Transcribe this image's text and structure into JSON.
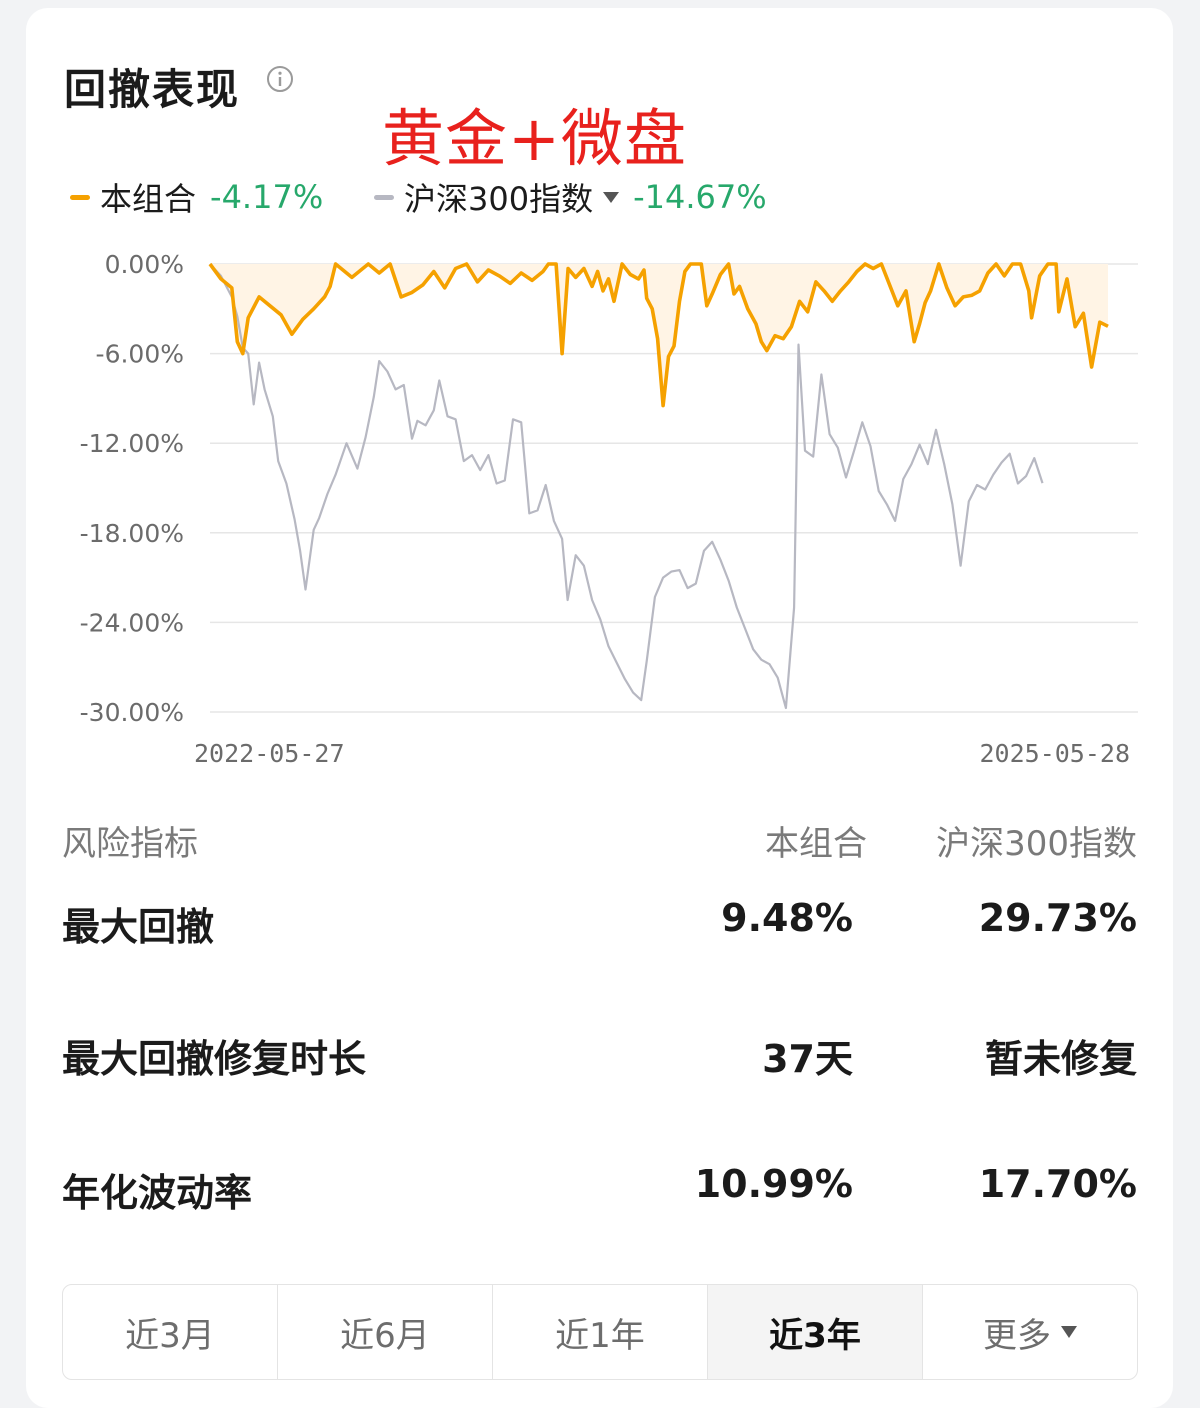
{
  "header": {
    "title": "回撤表现",
    "annotation": "黄金+微盘"
  },
  "legend": {
    "portfolio": {
      "name": "本组合",
      "value": "-4.17%",
      "color": "#f5a100"
    },
    "index": {
      "name": "沪深300指数",
      "value": "-14.67%",
      "color": "#b7b8c2"
    },
    "value_color": "#27a86b"
  },
  "chart_data": {
    "type": "line",
    "x_start": "2022-05-27",
    "x_end": "2025-05-28",
    "x_tick_labels": [
      "2022-05-27",
      "2025-05-28"
    ],
    "y_tick_labels": [
      "0.00%",
      "-6.00%",
      "-12.00%",
      "-18.00%",
      "-24.00%",
      "-30.00%"
    ],
    "ylim": [
      -30,
      0
    ],
    "grid": true,
    "series": [
      {
        "name": "本组合",
        "color": "#f5a100",
        "fill": "#fff4e5",
        "points": [
          [
            0,
            0
          ],
          [
            0.02,
            -1.0
          ],
          [
            0.04,
            -1.6
          ],
          [
            0.05,
            -5.2
          ],
          [
            0.06,
            -6.0
          ],
          [
            0.07,
            -3.6
          ],
          [
            0.09,
            -2.2
          ],
          [
            0.11,
            -2.8
          ],
          [
            0.13,
            -3.4
          ],
          [
            0.15,
            -4.7
          ],
          [
            0.17,
            -3.7
          ],
          [
            0.19,
            -3.0
          ],
          [
            0.21,
            -2.2
          ],
          [
            0.22,
            -1.5
          ],
          [
            0.23,
            0
          ],
          [
            0.26,
            -0.9
          ],
          [
            0.29,
            0
          ],
          [
            0.31,
            -0.6
          ],
          [
            0.33,
            0
          ],
          [
            0.35,
            -2.2
          ],
          [
            0.37,
            -1.9
          ],
          [
            0.39,
            -1.4
          ],
          [
            0.41,
            -0.5
          ],
          [
            0.43,
            -1.6
          ],
          [
            0.45,
            -0.3
          ],
          [
            0.47,
            0
          ],
          [
            0.49,
            -1.2
          ],
          [
            0.51,
            -0.4
          ],
          [
            0.53,
            -0.8
          ],
          [
            0.55,
            -1.3
          ],
          [
            0.57,
            -0.6
          ],
          [
            0.59,
            -1.1
          ],
          [
            0.61,
            -0.5
          ],
          [
            0.62,
            0
          ],
          [
            0.634,
            0
          ],
          [
            0.645,
            -6.0
          ],
          [
            0.656,
            -0.3
          ],
          [
            0.67,
            -0.9
          ],
          [
            0.685,
            -0.3
          ],
          [
            0.7,
            -1.5
          ],
          [
            0.71,
            -0.5
          ],
          [
            0.72,
            -1.8
          ],
          [
            0.73,
            -1.0
          ],
          [
            0.74,
            -2.5
          ],
          [
            0.755,
            0
          ],
          [
            0.77,
            -0.7
          ],
          [
            0.785,
            -1.0
          ],
          [
            0.795,
            -0.4
          ],
          [
            0.8,
            -2.3
          ],
          [
            0.81,
            -3.0
          ],
          [
            0.82,
            -5.0
          ],
          [
            0.83,
            -9.48
          ],
          [
            0.84,
            -6.2
          ],
          [
            0.85,
            -5.5
          ],
          [
            0.86,
            -2.5
          ],
          [
            0.87,
            -0.5
          ],
          [
            0.88,
            0
          ],
          [
            0.9,
            0
          ],
          [
            0.91,
            -2.8
          ],
          [
            0.92,
            -2.0
          ],
          [
            0.935,
            -0.7
          ],
          [
            0.95,
            0
          ],
          [
            0.96,
            -2.0
          ],
          [
            0.97,
            -1.5
          ],
          [
            0.985,
            -3.0
          ],
          [
            1.0,
            -4.0
          ],
          [
            1.01,
            -5.2
          ],
          [
            1.02,
            -5.8
          ],
          [
            1.035,
            -4.8
          ],
          [
            1.05,
            -5.0
          ],
          [
            1.065,
            -4.2
          ],
          [
            1.08,
            -2.5
          ],
          [
            1.095,
            -3.2
          ],
          [
            1.11,
            -1.2
          ],
          [
            1.125,
            -1.8
          ],
          [
            1.14,
            -2.5
          ],
          [
            1.155,
            -1.8
          ],
          [
            1.17,
            -1.2
          ],
          [
            1.185,
            -0.5
          ],
          [
            1.2,
            0
          ],
          [
            1.215,
            -0.3
          ],
          [
            1.23,
            0
          ],
          [
            1.245,
            -1.4
          ],
          [
            1.26,
            -2.8
          ],
          [
            1.275,
            -1.8
          ],
          [
            1.29,
            -5.2
          ],
          [
            1.3,
            -4.0
          ],
          [
            1.31,
            -2.6
          ],
          [
            1.32,
            -1.8
          ],
          [
            1.335,
            0
          ],
          [
            1.35,
            -1.6
          ],
          [
            1.365,
            -2.8
          ],
          [
            1.38,
            -2.2
          ],
          [
            1.395,
            -2.1
          ],
          [
            1.41,
            -1.8
          ],
          [
            1.425,
            -0.6
          ],
          [
            1.44,
            0
          ],
          [
            1.455,
            -0.8
          ],
          [
            1.47,
            0
          ],
          [
            1.485,
            0
          ],
          [
            1.5,
            -1.8
          ],
          [
            1.505,
            -3.6
          ],
          [
            1.52,
            -0.8
          ],
          [
            1.535,
            0
          ],
          [
            1.55,
            0
          ],
          [
            1.555,
            -3.2
          ],
          [
            1.57,
            -1.0
          ],
          [
            1.585,
            -4.2
          ],
          [
            1.6,
            -3.3
          ],
          [
            1.615,
            -6.9
          ],
          [
            1.63,
            -3.9
          ],
          [
            1.645,
            -4.17
          ]
        ]
      },
      {
        "name": "沪深300指数",
        "color": "#b7b8c2",
        "points": [
          [
            0,
            0
          ],
          [
            0.02,
            -0.8
          ],
          [
            0.04,
            -2.2
          ],
          [
            0.05,
            -3.5
          ],
          [
            0.06,
            -5.6
          ],
          [
            0.07,
            -6.0
          ],
          [
            0.08,
            -9.4
          ],
          [
            0.09,
            -6.6
          ],
          [
            0.1,
            -8.4
          ],
          [
            0.115,
            -10.2
          ],
          [
            0.125,
            -13.2
          ],
          [
            0.14,
            -14.7
          ],
          [
            0.155,
            -17.1
          ],
          [
            0.165,
            -19.2
          ],
          [
            0.175,
            -21.8
          ],
          [
            0.19,
            -17.8
          ],
          [
            0.2,
            -17.0
          ],
          [
            0.215,
            -15.4
          ],
          [
            0.23,
            -14.1
          ],
          [
            0.25,
            -12.0
          ],
          [
            0.27,
            -13.7
          ],
          [
            0.285,
            -11.6
          ],
          [
            0.3,
            -8.9
          ],
          [
            0.31,
            -6.5
          ],
          [
            0.325,
            -7.2
          ],
          [
            0.34,
            -8.4
          ],
          [
            0.355,
            -8.1
          ],
          [
            0.37,
            -11.7
          ],
          [
            0.38,
            -10.5
          ],
          [
            0.395,
            -10.8
          ],
          [
            0.41,
            -9.8
          ],
          [
            0.42,
            -7.8
          ],
          [
            0.435,
            -10.2
          ],
          [
            0.45,
            -10.4
          ],
          [
            0.465,
            -13.2
          ],
          [
            0.48,
            -12.8
          ],
          [
            0.495,
            -13.8
          ],
          [
            0.51,
            -12.8
          ],
          [
            0.525,
            -14.7
          ],
          [
            0.54,
            -14.5
          ],
          [
            0.555,
            -10.4
          ],
          [
            0.57,
            -10.6
          ],
          [
            0.585,
            -16.7
          ],
          [
            0.6,
            -16.5
          ],
          [
            0.615,
            -14.8
          ],
          [
            0.63,
            -17.2
          ],
          [
            0.645,
            -18.4
          ],
          [
            0.655,
            -22.5
          ],
          [
            0.67,
            -19.5
          ],
          [
            0.685,
            -20.2
          ],
          [
            0.7,
            -22.5
          ],
          [
            0.715,
            -23.8
          ],
          [
            0.73,
            -25.6
          ],
          [
            0.745,
            -26.7
          ],
          [
            0.76,
            -27.8
          ],
          [
            0.775,
            -28.7
          ],
          [
            0.79,
            -29.2
          ],
          [
            0.8,
            -26.6
          ],
          [
            0.815,
            -22.3
          ],
          [
            0.83,
            -21.0
          ],
          [
            0.845,
            -20.6
          ],
          [
            0.86,
            -20.5
          ],
          [
            0.875,
            -21.7
          ],
          [
            0.89,
            -21.4
          ],
          [
            0.905,
            -19.2
          ],
          [
            0.92,
            -18.6
          ],
          [
            0.935,
            -19.8
          ],
          [
            0.95,
            -21.2
          ],
          [
            0.965,
            -23.0
          ],
          [
            0.98,
            -24.4
          ],
          [
            0.995,
            -25.8
          ],
          [
            1.01,
            -26.5
          ],
          [
            1.025,
            -26.8
          ],
          [
            1.04,
            -27.7
          ],
          [
            1.055,
            -29.73
          ],
          [
            1.07,
            -23.0
          ],
          [
            1.078,
            -5.4
          ],
          [
            1.09,
            -12.5
          ],
          [
            1.105,
            -12.9
          ],
          [
            1.12,
            -7.4
          ],
          [
            1.135,
            -11.4
          ],
          [
            1.15,
            -12.3
          ],
          [
            1.165,
            -14.3
          ],
          [
            1.18,
            -12.5
          ],
          [
            1.195,
            -10.6
          ],
          [
            1.21,
            -12.2
          ],
          [
            1.225,
            -15.2
          ],
          [
            1.24,
            -16.1
          ],
          [
            1.255,
            -17.2
          ],
          [
            1.27,
            -14.4
          ],
          [
            1.285,
            -13.4
          ],
          [
            1.3,
            -12.1
          ],
          [
            1.315,
            -13.4
          ],
          [
            1.33,
            -11.1
          ],
          [
            1.345,
            -13.4
          ],
          [
            1.36,
            -16.1
          ],
          [
            1.375,
            -20.2
          ],
          [
            1.39,
            -15.9
          ],
          [
            1.405,
            -14.8
          ],
          [
            1.42,
            -15.1
          ],
          [
            1.435,
            -14.1
          ],
          [
            1.45,
            -13.3
          ],
          [
            1.465,
            -12.7
          ],
          [
            1.48,
            -14.7
          ],
          [
            1.495,
            -14.2
          ],
          [
            1.51,
            -13.0
          ],
          [
            1.525,
            -14.67
          ]
        ]
      }
    ]
  },
  "metrics": {
    "headers": {
      "label": "风险指标",
      "portfolio": "本组合",
      "index": "沪深300指数"
    },
    "rows": [
      {
        "label": "最大回撤",
        "portfolio": "9.48%",
        "index": "29.73%"
      },
      {
        "label": "最大回撤修复时长",
        "portfolio": "37天",
        "index": "暂未修复"
      },
      {
        "label": "年化波动率",
        "portfolio": "10.99%",
        "index": "17.70%"
      }
    ]
  },
  "tabs": [
    {
      "label": "近3月",
      "active": false
    },
    {
      "label": "近6月",
      "active": false
    },
    {
      "label": "近1年",
      "active": false
    },
    {
      "label": "近3年",
      "active": true
    },
    {
      "label": "更多",
      "active": false
    }
  ]
}
